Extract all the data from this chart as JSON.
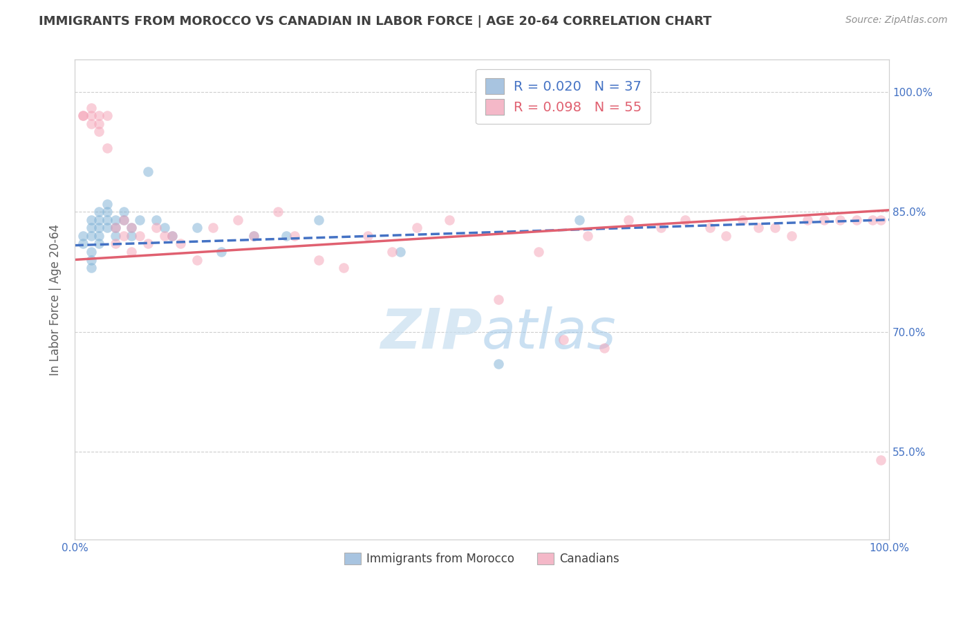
{
  "title": "IMMIGRANTS FROM MOROCCO VS CANADIAN IN LABOR FORCE | AGE 20-64 CORRELATION CHART",
  "source_text": "Source: ZipAtlas.com",
  "ylabel": "In Labor Force | Age 20-64",
  "xlim": [
    0.0,
    1.0
  ],
  "ylim": [
    0.44,
    1.04
  ],
  "yticks": [
    0.55,
    0.7,
    0.85,
    1.0
  ],
  "ytick_labels": [
    "55.0%",
    "70.0%",
    "85.0%",
    "100.0%"
  ],
  "xticks": [
    0.0,
    1.0
  ],
  "xtick_labels": [
    "0.0%",
    "100.0%"
  ],
  "blue_scatter_x": [
    0.01,
    0.01,
    0.02,
    0.02,
    0.02,
    0.02,
    0.02,
    0.02,
    0.03,
    0.03,
    0.03,
    0.03,
    0.03,
    0.04,
    0.04,
    0.04,
    0.04,
    0.05,
    0.05,
    0.05,
    0.06,
    0.06,
    0.07,
    0.07,
    0.08,
    0.09,
    0.1,
    0.11,
    0.12,
    0.15,
    0.18,
    0.22,
    0.26,
    0.3,
    0.4,
    0.52,
    0.62
  ],
  "blue_scatter_y": [
    0.82,
    0.81,
    0.84,
    0.83,
    0.82,
    0.8,
    0.79,
    0.78,
    0.85,
    0.84,
    0.83,
    0.82,
    0.81,
    0.86,
    0.85,
    0.84,
    0.83,
    0.84,
    0.83,
    0.82,
    0.85,
    0.84,
    0.83,
    0.82,
    0.84,
    0.9,
    0.84,
    0.83,
    0.82,
    0.83,
    0.8,
    0.82,
    0.82,
    0.84,
    0.8,
    0.66,
    0.84
  ],
  "pink_scatter_x": [
    0.01,
    0.01,
    0.02,
    0.02,
    0.02,
    0.03,
    0.03,
    0.03,
    0.04,
    0.04,
    0.05,
    0.05,
    0.06,
    0.06,
    0.07,
    0.07,
    0.08,
    0.09,
    0.1,
    0.11,
    0.12,
    0.13,
    0.15,
    0.17,
    0.2,
    0.22,
    0.25,
    0.27,
    0.3,
    0.33,
    0.36,
    0.39,
    0.42,
    0.46,
    0.52,
    0.57,
    0.6,
    0.63,
    0.65,
    0.68,
    0.72,
    0.75,
    0.78,
    0.8,
    0.82,
    0.84,
    0.86,
    0.88,
    0.9,
    0.92,
    0.94,
    0.96,
    0.98,
    0.99,
    0.99
  ],
  "pink_scatter_y": [
    0.97,
    0.97,
    0.98,
    0.97,
    0.96,
    0.95,
    0.97,
    0.96,
    0.93,
    0.97,
    0.83,
    0.81,
    0.84,
    0.82,
    0.83,
    0.8,
    0.82,
    0.81,
    0.83,
    0.82,
    0.82,
    0.81,
    0.79,
    0.83,
    0.84,
    0.82,
    0.85,
    0.82,
    0.79,
    0.78,
    0.82,
    0.8,
    0.83,
    0.84,
    0.74,
    0.8,
    0.69,
    0.82,
    0.68,
    0.84,
    0.83,
    0.84,
    0.83,
    0.82,
    0.84,
    0.83,
    0.83,
    0.82,
    0.84,
    0.84,
    0.84,
    0.84,
    0.84,
    0.84,
    0.54
  ],
  "blue_line_x": [
    0.0,
    1.0
  ],
  "blue_line_y": [
    0.808,
    0.84
  ],
  "pink_line_x": [
    0.0,
    1.0
  ],
  "pink_line_y": [
    0.79,
    0.852
  ],
  "blue_color": "#7bafd4",
  "pink_color": "#f4a0b5",
  "blue_line_color": "#4472c4",
  "pink_line_color": "#e06070",
  "scatter_alpha": 0.5,
  "scatter_size": 110,
  "bg_color": "#ffffff",
  "grid_color": "#c8c8c8",
  "title_color": "#404040",
  "axis_label_color": "#606060",
  "tick_color": "#4472c4",
  "legend_r1": "R = 0.020   N = 37",
  "legend_r2": "R = 0.098   N = 55",
  "legend_blue_patch": "#a8c4e0",
  "legend_pink_patch": "#f4b8c8",
  "bottom_legend_labels": [
    "Immigrants from Morocco",
    "Canadians"
  ]
}
